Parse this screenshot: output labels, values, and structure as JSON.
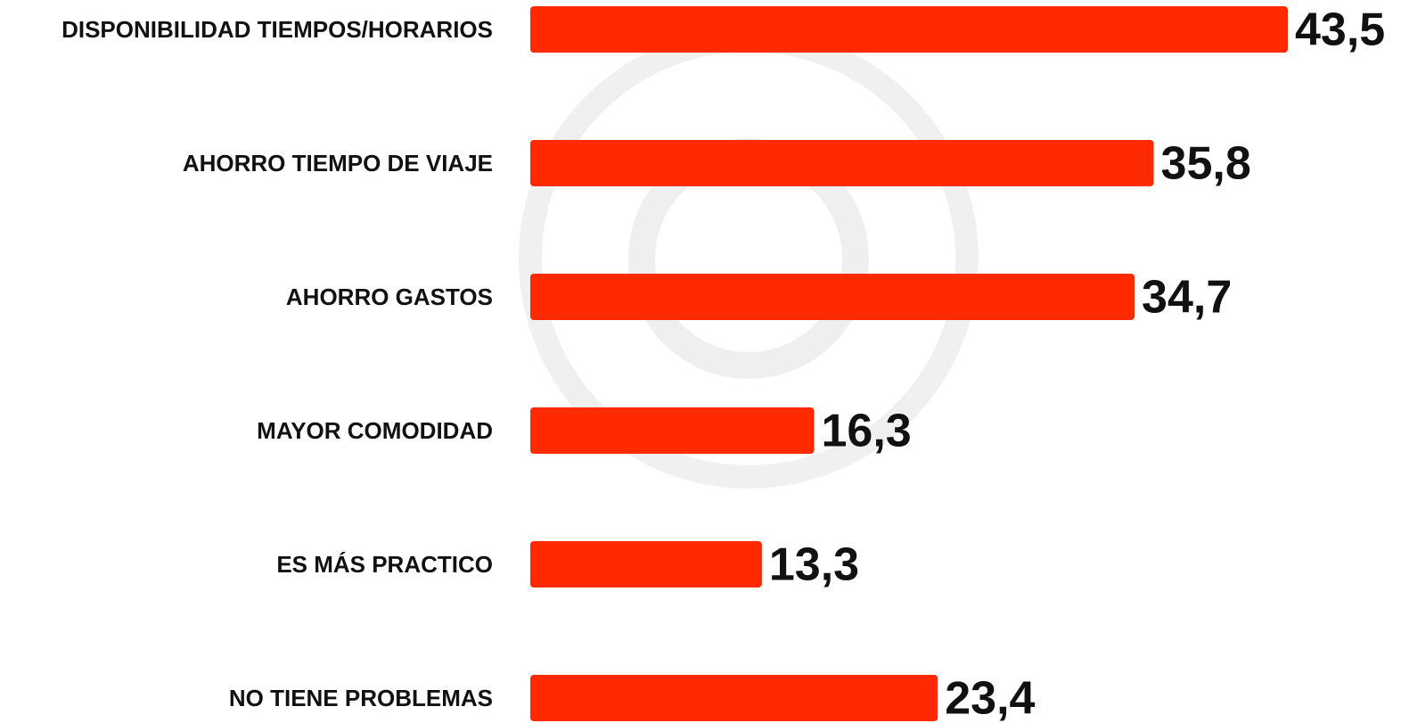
{
  "chart_data": {
    "type": "bar",
    "orientation": "horizontal",
    "categories": [
      "DISPONIBILIDAD TIEMPOS/HORARIOS",
      "AHORRO TIEMPO DE VIAJE",
      "AHORRO GASTOS",
      "MAYOR COMODIDAD",
      "ES MÁS PRACTICO",
      "NO TIENE PROBLEMAS"
    ],
    "values": [
      43.5,
      35.8,
      34.7,
      16.3,
      13.3,
      23.4
    ],
    "value_labels": [
      "43,5",
      "35,8",
      "34,7",
      "16,3",
      "13,3",
      "23,4"
    ],
    "color": "#ff2a00"
  }
}
